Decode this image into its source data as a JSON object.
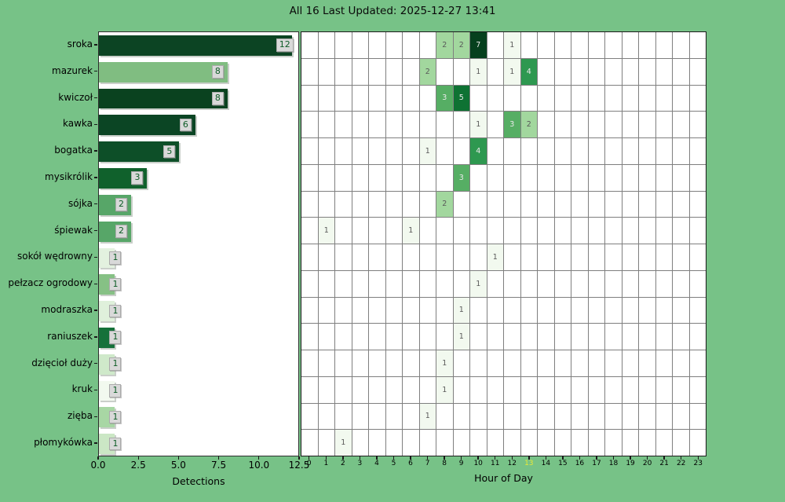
{
  "title": "All 16 Last Updated: 2025-12-27 13:41",
  "colors": {
    "background": "#77c287",
    "plot_background": "#ffffff",
    "grid_line": "#7f7f7f",
    "spine": "#1b1b1b",
    "bar_value_box_bg": "#d9d9d9",
    "bar_value_text": "#0d5c26",
    "heat_text_on_light": "#595959",
    "heat_text_on_dark": "#e9e9e9",
    "tick_label": "#000000",
    "highlighted_hour_label": "#e8e837"
  },
  "chart_data": [
    {
      "type": "bar",
      "orientation": "horizontal",
      "title": "All 16 Last Updated: 2025-12-27 13:41",
      "xlabel": "Detections",
      "xlim": [
        0,
        12.5
      ],
      "xticks": [
        0,
        2.5,
        5,
        7.5,
        10,
        12.5
      ],
      "xticklabels": [
        "0.0",
        "2.5",
        "5.0",
        "7.5",
        "10.0",
        "12.5"
      ],
      "categories": [
        "sroka",
        "mazurek",
        "kwiczoł",
        "kawka",
        "bogatka",
        "mysikrólik",
        "sójka",
        "śpiewak",
        "sokół wędrowny",
        "pełzacz ogrodowy",
        "modraszka",
        "raniuszek",
        "dzięcioł duży",
        "kruk",
        "zięba",
        "płomykówka"
      ],
      "values": [
        12,
        8,
        8,
        6,
        5,
        3,
        2,
        2,
        1,
        1,
        1,
        1,
        1,
        1,
        1,
        1
      ],
      "bar_colors": [
        "#0c4423",
        "#80bd81",
        "#0a421f",
        "#0b4524",
        "#0d4f28",
        "#10612c",
        "#57a668",
        "#57a668",
        "#e3f1df",
        "#86c185",
        "#dff0db",
        "#15713a",
        "#cfe9ca",
        "#f2f9ef",
        "#a8d7a4",
        "#cbe7c5"
      ],
      "grid": false,
      "legend": false
    },
    {
      "type": "heatmap",
      "xlabel": "Hour of Day",
      "hours_min": 0,
      "hours_max": 23,
      "highlighted_hour_tick": 13,
      "rows": [
        "sroka",
        "mazurek",
        "kwiczoł",
        "kawka",
        "bogatka",
        "mysikrólik",
        "sójka",
        "śpiewak",
        "sokół wędrowny",
        "pełzacz ogrodowy",
        "modraszka",
        "raniuszek",
        "dzięcioł duży",
        "kruk",
        "zięba",
        "płomykówka"
      ],
      "cells": [
        {
          "row": "sroka",
          "hour": 8,
          "value": 2
        },
        {
          "row": "sroka",
          "hour": 9,
          "value": 2
        },
        {
          "row": "sroka",
          "hour": 10,
          "value": 7
        },
        {
          "row": "sroka",
          "hour": 12,
          "value": 1
        },
        {
          "row": "mazurek",
          "hour": 7,
          "value": 2
        },
        {
          "row": "mazurek",
          "hour": 10,
          "value": 1
        },
        {
          "row": "mazurek",
          "hour": 12,
          "value": 1
        },
        {
          "row": "mazurek",
          "hour": 13,
          "value": 4
        },
        {
          "row": "kwiczoł",
          "hour": 8,
          "value": 3
        },
        {
          "row": "kwiczoł",
          "hour": 9,
          "value": 5
        },
        {
          "row": "kawka",
          "hour": 10,
          "value": 1
        },
        {
          "row": "kawka",
          "hour": 12,
          "value": 3
        },
        {
          "row": "kawka",
          "hour": 13,
          "value": 2
        },
        {
          "row": "bogatka",
          "hour": 7,
          "value": 1
        },
        {
          "row": "bogatka",
          "hour": 10,
          "value": 4
        },
        {
          "row": "mysikrólik",
          "hour": 9,
          "value": 3
        },
        {
          "row": "sójka",
          "hour": 8,
          "value": 2
        },
        {
          "row": "śpiewak",
          "hour": 1,
          "value": 1
        },
        {
          "row": "śpiewak",
          "hour": 6,
          "value": 1
        },
        {
          "row": "sokół wędrowny",
          "hour": 11,
          "value": 1
        },
        {
          "row": "pełzacz ogrodowy",
          "hour": 10,
          "value": 1
        },
        {
          "row": "modraszka",
          "hour": 9,
          "value": 1
        },
        {
          "row": "raniuszek",
          "hour": 9,
          "value": 1
        },
        {
          "row": "dzięcioł duży",
          "hour": 8,
          "value": 1
        },
        {
          "row": "kruk",
          "hour": 8,
          "value": 1
        },
        {
          "row": "zięba",
          "hour": 7,
          "value": 1
        },
        {
          "row": "płomykówka",
          "hour": 2,
          "value": 1
        }
      ],
      "value_colors": {
        "1": "#f2f9ef",
        "2": "#a2d79e",
        "3": "#56ae64",
        "4": "#2e9850",
        "5": "#0e7233",
        "7": "#06401d"
      },
      "grid": true
    }
  ]
}
